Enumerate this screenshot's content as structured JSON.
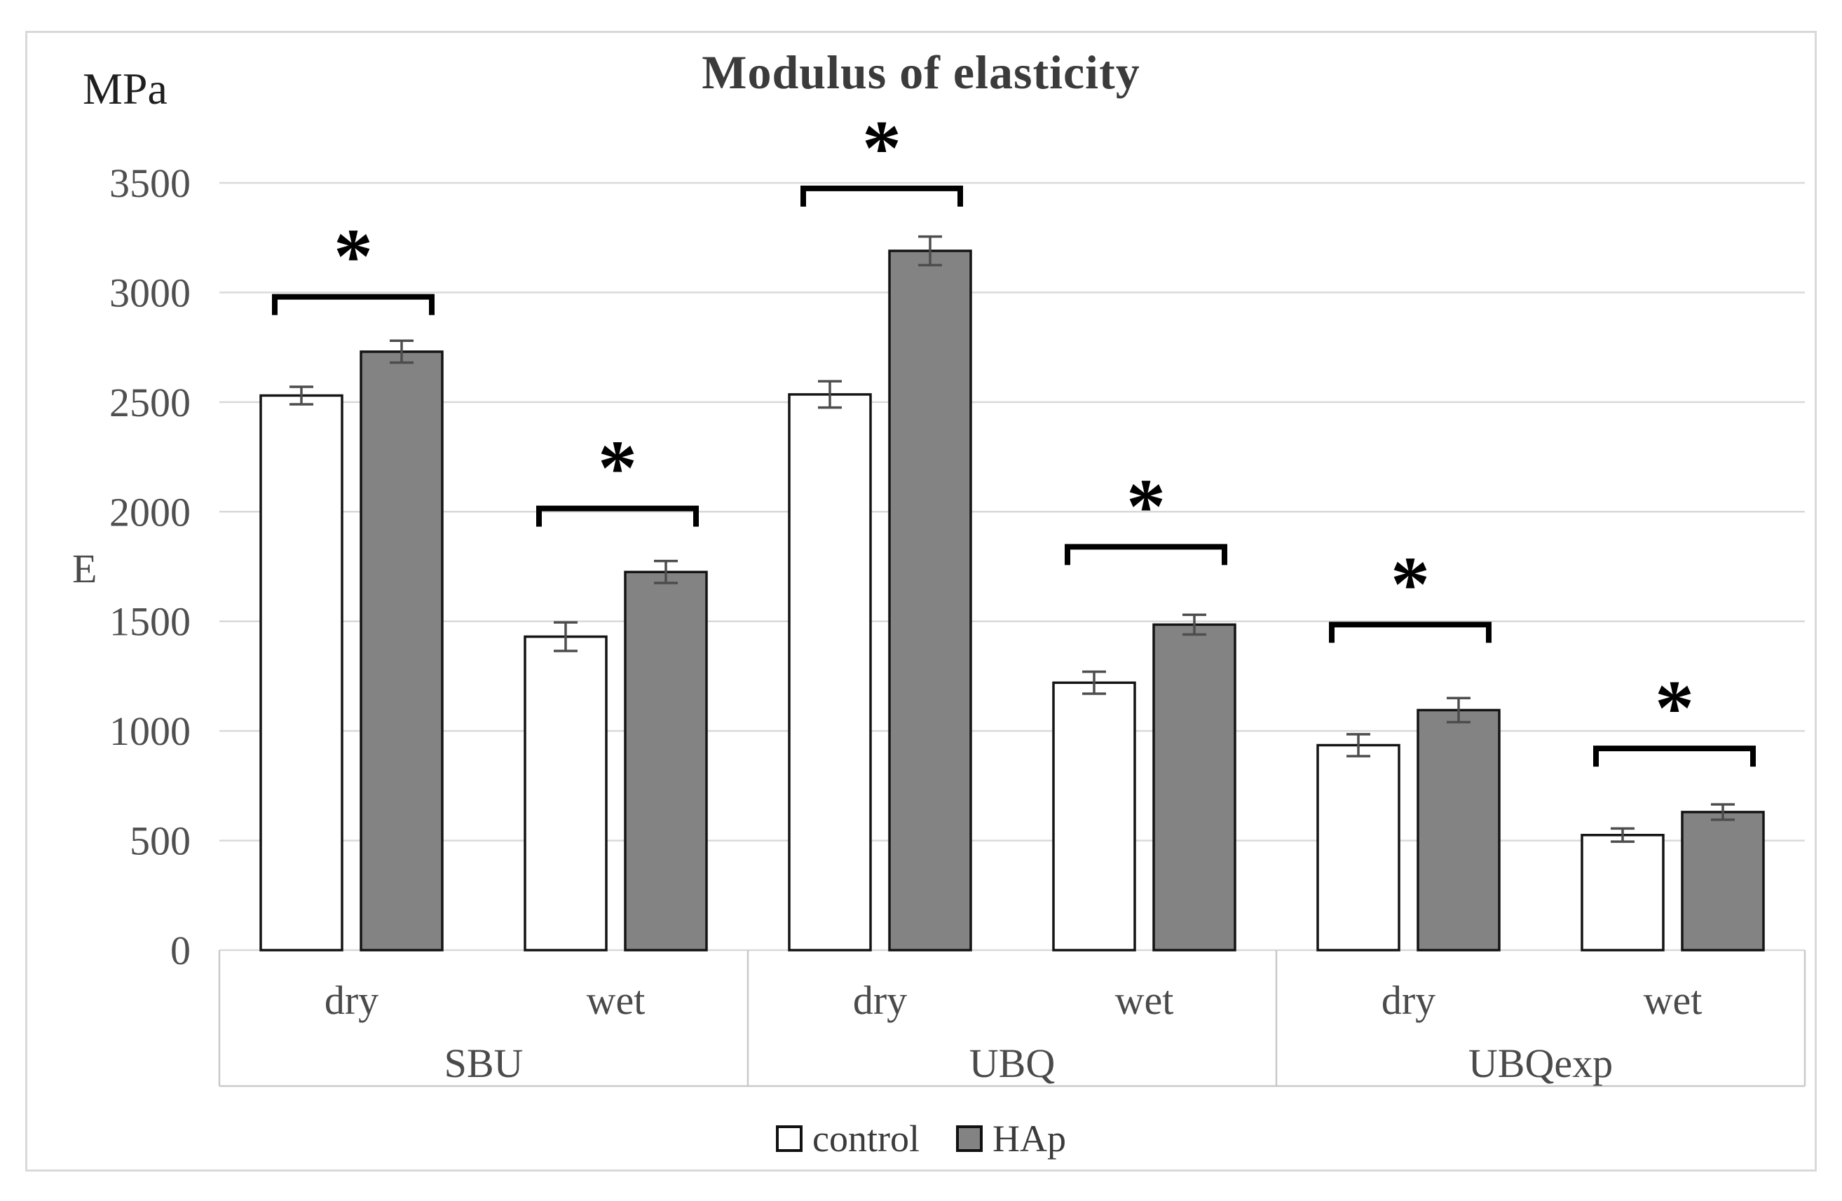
{
  "chart_data": {
    "type": "bar",
    "title": "Modulus of elasticity",
    "unit_label": "MPa",
    "ylabel": "E",
    "ylim": [
      0,
      3500
    ],
    "yticks": [
      0,
      500,
      1000,
      1500,
      2000,
      2500,
      3000,
      3500
    ],
    "grid": true,
    "legend_position": "bottom-center",
    "groups": [
      "SBU",
      "UBQ",
      "UBQexp"
    ],
    "slots": [
      {
        "group": "SBU",
        "condition": "dry"
      },
      {
        "group": "SBU",
        "condition": "wet"
      },
      {
        "group": "UBQ",
        "condition": "dry"
      },
      {
        "group": "UBQ",
        "condition": "wet"
      },
      {
        "group": "UBQexp",
        "condition": "dry"
      },
      {
        "group": "UBQexp",
        "condition": "wet"
      }
    ],
    "series": [
      {
        "name": "control",
        "fill": "#ffffff",
        "values": [
          2530,
          1430,
          2535,
          1220,
          935,
          525
        ],
        "errors": [
          40,
          65,
          60,
          50,
          50,
          30
        ]
      },
      {
        "name": "HAp",
        "fill": "#838383",
        "values": [
          2730,
          1725,
          3190,
          1485,
          1095,
          630
        ],
        "errors": [
          50,
          50,
          65,
          45,
          55,
          35
        ]
      }
    ],
    "significance": [
      {
        "slot": 0,
        "marker": "*",
        "bracket_level": 2980
      },
      {
        "slot": 1,
        "marker": "*",
        "bracket_level": 2015
      },
      {
        "slot": 2,
        "marker": "*",
        "bracket_level": 3475
      },
      {
        "slot": 3,
        "marker": "*",
        "bracket_level": 1840
      },
      {
        "slot": 4,
        "marker": "*",
        "bracket_level": 1485
      },
      {
        "slot": 5,
        "marker": "*",
        "bracket_level": 920
      }
    ],
    "colors": {
      "gridline": "#d9d9d9",
      "band_border": "#c9c9c9",
      "bar_border": "#141414",
      "error_bar": "#4d4d4d",
      "bracket": "#000000",
      "tick_label": "#4f4f4f",
      "category_label": "#4a4a4a"
    }
  }
}
